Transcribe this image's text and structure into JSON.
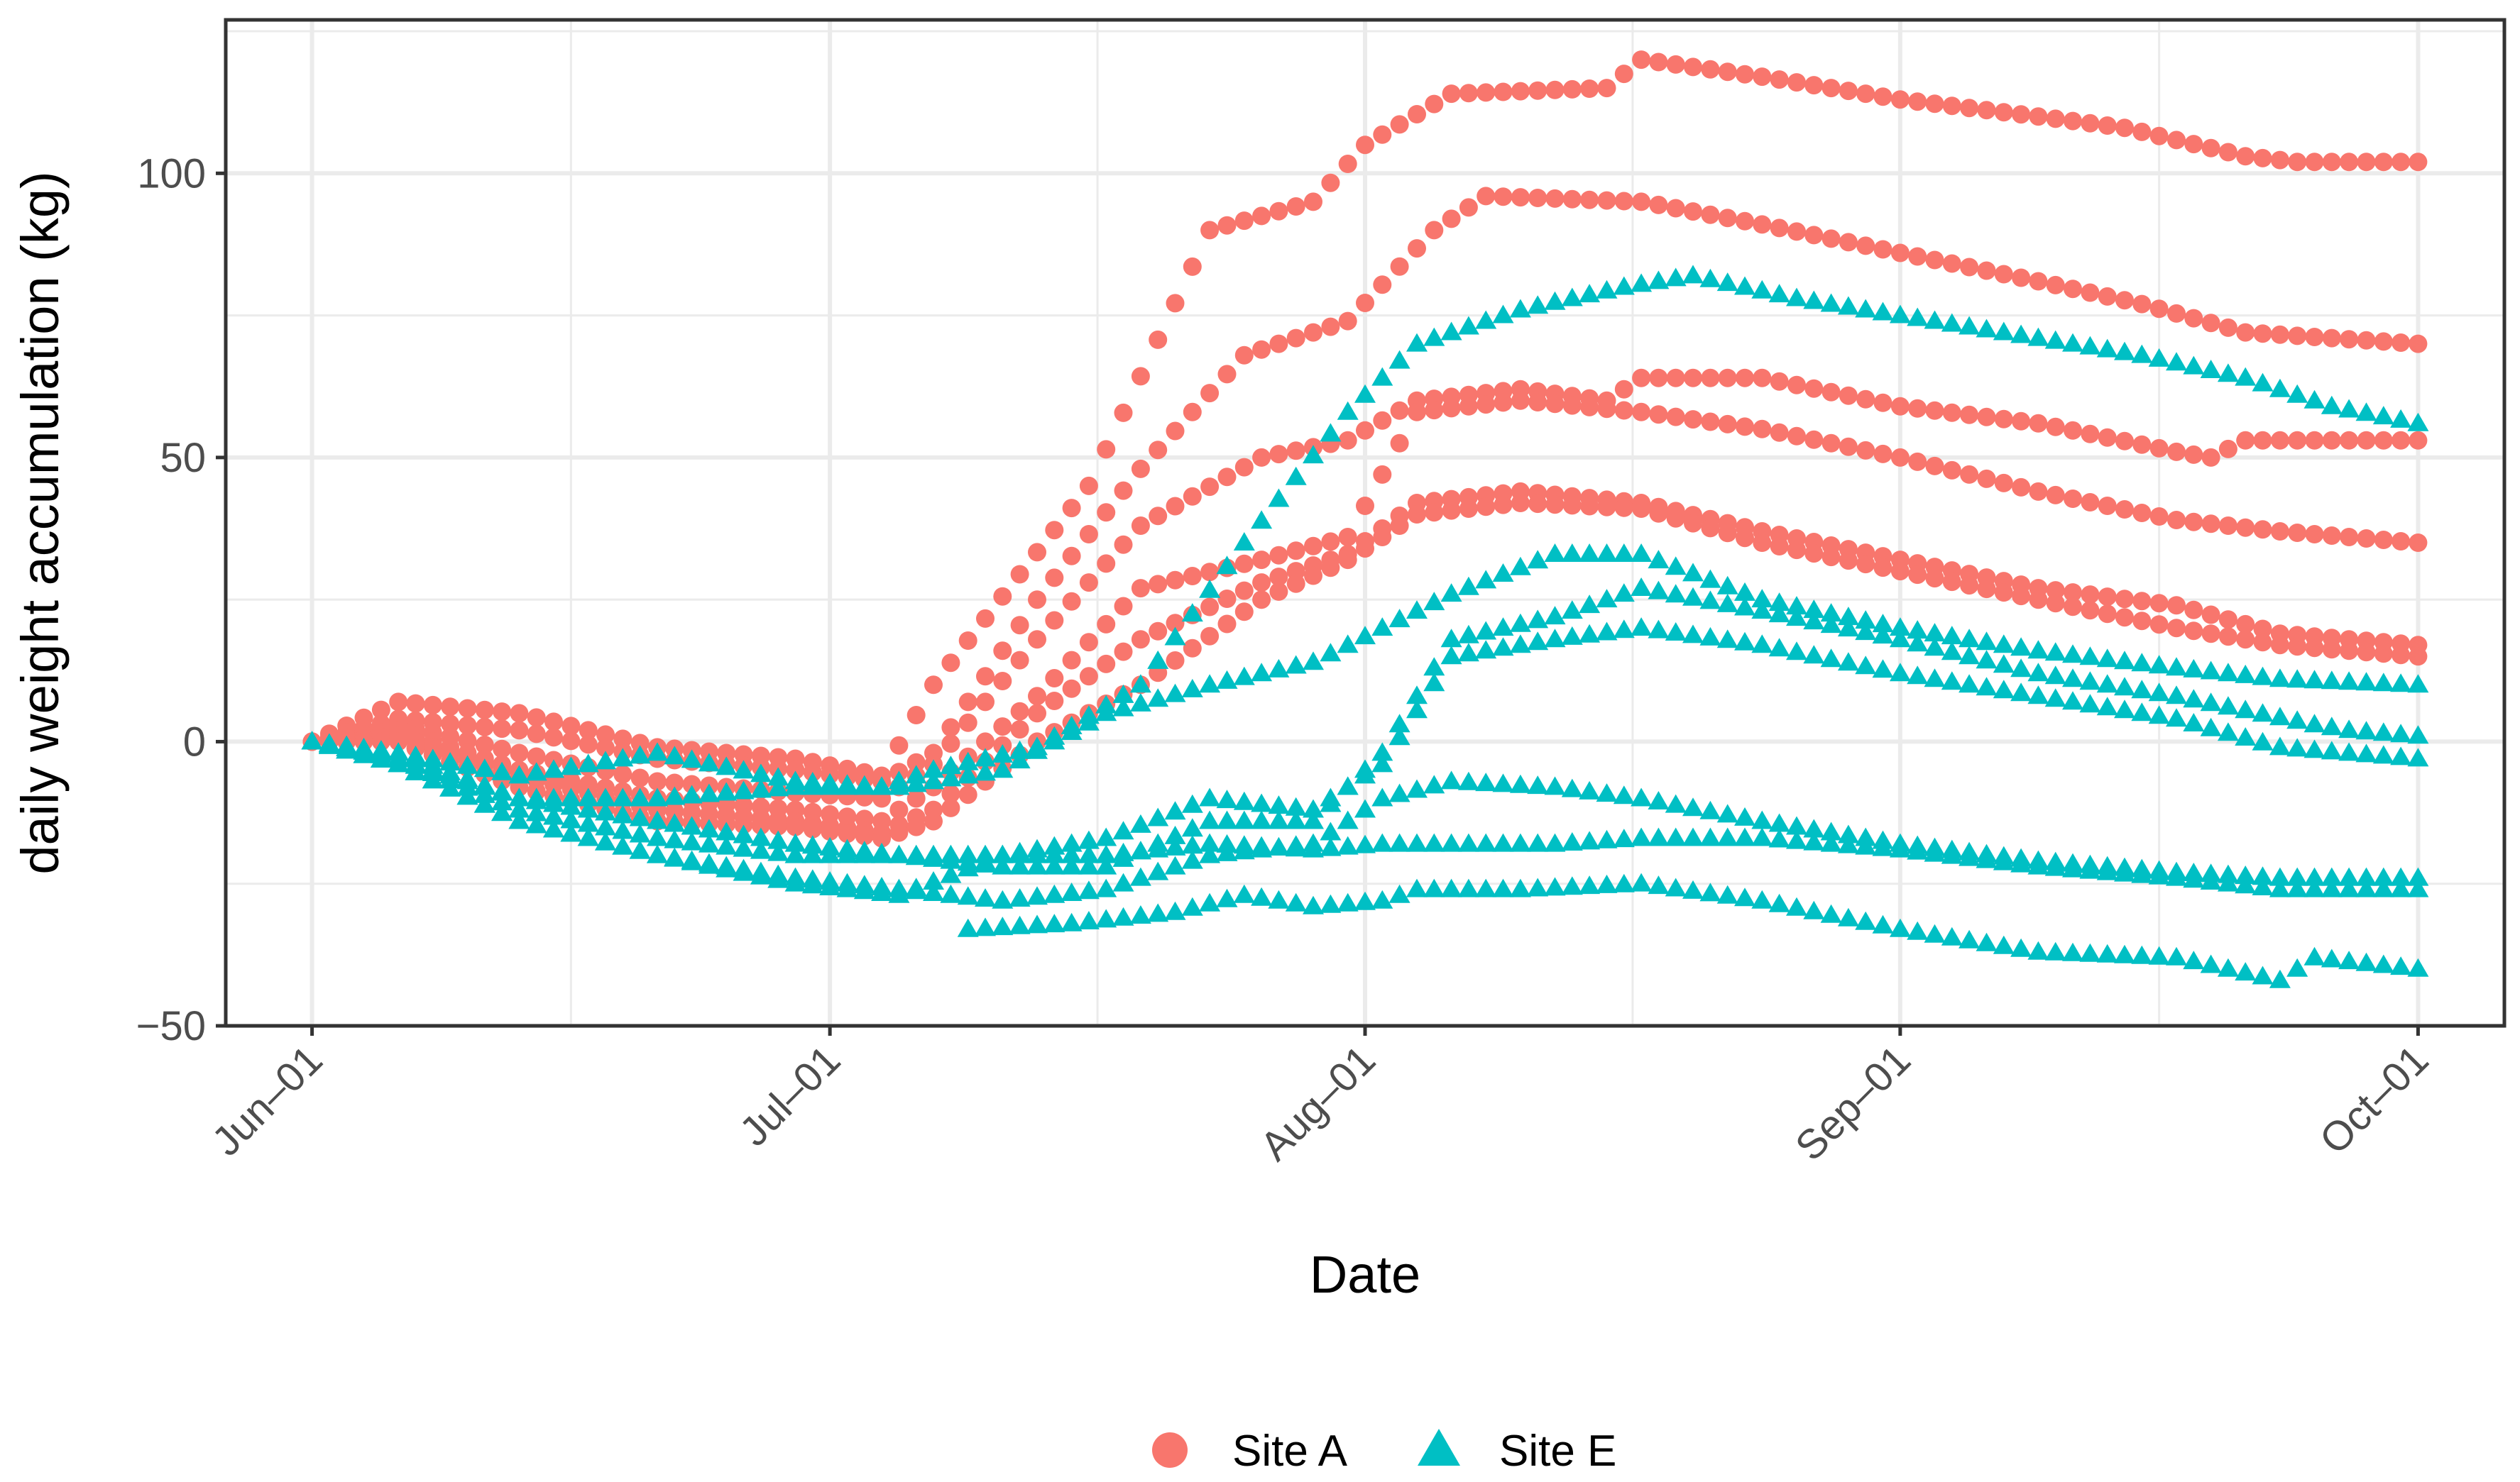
{
  "chart_data": {
    "type": "scatter",
    "title": "",
    "xlabel": "Date",
    "ylabel": "daily weight accumulation (kg)",
    "x_axis": {
      "unit": "days since Jun-01",
      "range": [
        -5,
        127
      ],
      "ticks": [
        {
          "value": 0,
          "label": "Jun–01"
        },
        {
          "value": 30,
          "label": "Jul–01"
        },
        {
          "value": 61,
          "label": "Aug–01"
        },
        {
          "value": 92,
          "label": "Sep–01"
        },
        {
          "value": 122,
          "label": "Oct–01"
        }
      ]
    },
    "y_axis": {
      "range": [
        -50,
        127
      ],
      "ticks": [
        {
          "value": -50,
          "label": "−50"
        },
        {
          "value": 0,
          "label": "0"
        },
        {
          "value": 50,
          "label": "50"
        },
        {
          "value": 100,
          "label": "100"
        }
      ]
    },
    "grid": true,
    "legend": {
      "position": "bottom",
      "entries": [
        {
          "name": "Site A",
          "shape": "circle",
          "color": "#F8766D"
        },
        {
          "name": "Site E",
          "shape": "triangle",
          "color": "#00BFC4"
        }
      ]
    },
    "series": [
      {
        "name": "Site A",
        "shape": "circle",
        "color": "#F8766D",
        "points": [
          [
            0,
            0
          ],
          [
            5,
            7
          ],
          [
            12,
            5
          ],
          [
            20,
            -1
          ],
          [
            28,
            -3
          ],
          [
            33,
            -6
          ],
          [
            36,
            10
          ],
          [
            45,
            45
          ],
          [
            52,
            90
          ],
          [
            58,
            95
          ],
          [
            61,
            105
          ],
          [
            66,
            114
          ],
          [
            75,
            115
          ],
          [
            77,
            120
          ],
          [
            84,
            117
          ],
          [
            92,
            113
          ],
          [
            100,
            110
          ],
          [
            105,
            108
          ],
          [
            112,
            103
          ],
          [
            115,
            102
          ],
          [
            122,
            102
          ]
        ]
      },
      {
        "name": "Site A",
        "shape": "circle",
        "color": "#F8766D",
        "points": [
          [
            0,
            0
          ],
          [
            5,
            4
          ],
          [
            12,
            2
          ],
          [
            20,
            -3
          ],
          [
            28,
            -5
          ],
          [
            33,
            -7
          ],
          [
            36,
            -2
          ],
          [
            42,
            25
          ],
          [
            48,
            48
          ],
          [
            54,
            68
          ],
          [
            60,
            74
          ],
          [
            65,
            90
          ],
          [
            68,
            96
          ],
          [
            77,
            95
          ],
          [
            84,
            91
          ],
          [
            92,
            86
          ],
          [
            100,
            81
          ],
          [
            106,
            77
          ],
          [
            112,
            72
          ],
          [
            117,
            71
          ],
          [
            122,
            70
          ]
        ]
      },
      {
        "name": "Site A",
        "shape": "circle",
        "color": "#F8766D",
        "points": [
          [
            0,
            0
          ],
          [
            5,
            3
          ],
          [
            12,
            -2
          ],
          [
            20,
            -7
          ],
          [
            28,
            -9
          ],
          [
            33,
            -10
          ],
          [
            36,
            -4
          ],
          [
            42,
            18
          ],
          [
            48,
            38
          ],
          [
            55,
            50
          ],
          [
            60,
            53
          ],
          [
            64,
            60
          ],
          [
            70,
            62
          ],
          [
            75,
            60
          ],
          [
            77,
            64
          ],
          [
            84,
            64
          ],
          [
            92,
            59
          ],
          [
            100,
            56
          ],
          [
            108,
            51
          ],
          [
            110,
            50
          ],
          [
            112,
            53
          ],
          [
            122,
            53
          ]
        ]
      },
      {
        "name": "Site A",
        "shape": "circle",
        "color": "#F8766D",
        "points": [
          [
            0,
            0
          ],
          [
            5,
            2
          ],
          [
            12,
            -5
          ],
          [
            20,
            -10
          ],
          [
            28,
            -12
          ],
          [
            33,
            -14
          ],
          [
            36,
            -8
          ],
          [
            42,
            8
          ],
          [
            48,
            27
          ],
          [
            55,
            32
          ],
          [
            60,
            36
          ],
          [
            64,
            58
          ],
          [
            70,
            60
          ],
          [
            77,
            58
          ],
          [
            84,
            55
          ],
          [
            92,
            50
          ],
          [
            100,
            44
          ],
          [
            108,
            39
          ],
          [
            114,
            37
          ],
          [
            122,
            35
          ]
        ]
      },
      {
        "name": "Site A",
        "shape": "circle",
        "color": "#F8766D",
        "points": [
          [
            0,
            0
          ],
          [
            5,
            1
          ],
          [
            12,
            -6
          ],
          [
            20,
            -12
          ],
          [
            28,
            -14
          ],
          [
            33,
            -16
          ],
          [
            36,
            -12
          ],
          [
            42,
            5
          ],
          [
            48,
            18
          ],
          [
            55,
            28
          ],
          [
            60,
            33
          ],
          [
            64,
            42
          ],
          [
            70,
            44
          ],
          [
            77,
            42
          ],
          [
            84,
            37
          ],
          [
            92,
            32
          ],
          [
            100,
            27
          ],
          [
            108,
            24
          ],
          [
            114,
            19
          ],
          [
            122,
            17
          ]
        ]
      },
      {
        "name": "Site A",
        "shape": "circle",
        "color": "#F8766D",
        "points": [
          [
            0,
            0
          ],
          [
            5,
            0
          ],
          [
            12,
            -8
          ],
          [
            20,
            -14
          ],
          [
            28,
            -15
          ],
          [
            33,
            -17
          ],
          [
            36,
            -14
          ],
          [
            42,
            0
          ],
          [
            48,
            10
          ],
          [
            55,
            25
          ],
          [
            60,
            32
          ],
          [
            64,
            40
          ],
          [
            70,
            42
          ],
          [
            77,
            41
          ],
          [
            84,
            35
          ],
          [
            92,
            30
          ],
          [
            100,
            25
          ],
          [
            108,
            20
          ],
          [
            114,
            17
          ],
          [
            122,
            15
          ]
        ]
      },
      {
        "name": "Site E",
        "shape": "triangle",
        "color": "#00BFC4",
        "points": [
          [
            0,
            0
          ],
          [
            5,
            -2
          ],
          [
            12,
            -6
          ],
          [
            20,
            -2
          ],
          [
            28,
            -7
          ],
          [
            33,
            -8
          ],
          [
            36,
            -5
          ],
          [
            42,
            -1
          ],
          [
            48,
            10
          ],
          [
            54,
            35
          ],
          [
            60,
            58
          ],
          [
            64,
            70
          ],
          [
            70,
            76
          ],
          [
            76,
            80
          ],
          [
            80,
            82
          ],
          [
            86,
            78
          ],
          [
            92,
            75
          ],
          [
            100,
            71
          ],
          [
            106,
            68
          ],
          [
            112,
            64
          ],
          [
            117,
            59
          ],
          [
            122,
            56
          ]
        ]
      },
      {
        "name": "Site E",
        "shape": "triangle",
        "color": "#00BFC4",
        "points": [
          [
            0,
            0
          ],
          [
            5,
            -2
          ],
          [
            12,
            -10
          ],
          [
            20,
            -10
          ],
          [
            28,
            -8
          ],
          [
            34,
            -8
          ],
          [
            40,
            -5
          ],
          [
            46,
            5
          ],
          [
            52,
            10
          ],
          [
            58,
            14
          ],
          [
            62,
            20
          ],
          [
            66,
            26
          ],
          [
            72,
            33
          ],
          [
            77,
            33
          ],
          [
            84,
            25
          ],
          [
            92,
            20
          ],
          [
            100,
            16
          ],
          [
            108,
            13
          ],
          [
            114,
            11
          ],
          [
            122,
            10
          ]
        ]
      },
      {
        "name": "Site E",
        "shape": "triangle",
        "color": "#00BFC4",
        "points": [
          [
            0,
            0
          ],
          [
            5,
            -3
          ],
          [
            12,
            -10
          ],
          [
            20,
            -14
          ],
          [
            28,
            -18
          ],
          [
            34,
            -20
          ],
          [
            40,
            -22
          ],
          [
            46,
            -22
          ],
          [
            52,
            -14
          ],
          [
            58,
            -14
          ],
          [
            62,
            -2
          ],
          [
            66,
            18
          ],
          [
            72,
            22
          ],
          [
            77,
            27
          ],
          [
            84,
            23
          ],
          [
            92,
            18
          ],
          [
            100,
            12
          ],
          [
            108,
            8
          ],
          [
            116,
            3
          ],
          [
            118,
            2
          ],
          [
            122,
            1
          ]
        ]
      },
      {
        "name": "Site E",
        "shape": "triangle",
        "color": "#00BFC4",
        "points": [
          [
            0,
            0
          ],
          [
            5,
            -3
          ],
          [
            12,
            -12
          ],
          [
            20,
            -17
          ],
          [
            28,
            -20
          ],
          [
            34,
            -20
          ],
          [
            40,
            -20
          ],
          [
            46,
            -17
          ],
          [
            52,
            -10
          ],
          [
            58,
            -12
          ],
          [
            62,
            -4
          ],
          [
            66,
            15
          ],
          [
            72,
            18
          ],
          [
            77,
            20
          ],
          [
            84,
            17
          ],
          [
            92,
            12
          ],
          [
            100,
            8
          ],
          [
            108,
            4
          ],
          [
            114,
            -1
          ],
          [
            122,
            -3
          ]
        ]
      },
      {
        "name": "Site E",
        "shape": "triangle",
        "color": "#00BFC4",
        "points": [
          [
            0,
            0
          ],
          [
            5,
            -4
          ],
          [
            12,
            -14
          ],
          [
            20,
            -20
          ],
          [
            28,
            -24
          ],
          [
            34,
            -26
          ],
          [
            40,
            -28
          ],
          [
            46,
            -26
          ],
          [
            52,
            -20
          ],
          [
            58,
            -18
          ],
          [
            62,
            -10
          ],
          [
            66,
            -7
          ],
          [
            72,
            -8
          ],
          [
            77,
            -10
          ],
          [
            84,
            -14
          ],
          [
            92,
            -18
          ],
          [
            100,
            -21
          ],
          [
            108,
            -23
          ],
          [
            114,
            -24
          ],
          [
            122,
            -24
          ]
        ]
      },
      {
        "name": "Site E",
        "shape": "triangle",
        "color": "#00BFC4",
        "points": [
          [
            0,
            0
          ],
          [
            5,
            -4
          ],
          [
            12,
            -14
          ],
          [
            20,
            -20
          ],
          [
            28,
            -25
          ],
          [
            34,
            -27
          ],
          [
            40,
            -20
          ],
          [
            46,
            -20
          ],
          [
            52,
            -18
          ],
          [
            58,
            -19
          ],
          [
            62,
            -18
          ],
          [
            66,
            -18
          ],
          [
            72,
            -18
          ],
          [
            77,
            -17
          ],
          [
            84,
            -17
          ],
          [
            92,
            -19
          ],
          [
            100,
            -22
          ],
          [
            108,
            -24
          ],
          [
            114,
            -26
          ],
          [
            122,
            -26
          ]
        ]
      },
      {
        "name": "Site E",
        "shape": "triangle",
        "color": "#00BFC4",
        "points": [
          [
            38,
            -33
          ],
          [
            44,
            -32
          ],
          [
            50,
            -30
          ],
          [
            54,
            -27
          ],
          [
            58,
            -29
          ],
          [
            62,
            -28
          ],
          [
            64,
            -26
          ],
          [
            70,
            -26
          ],
          [
            77,
            -25
          ],
          [
            84,
            -28
          ],
          [
            92,
            -33
          ],
          [
            100,
            -37
          ],
          [
            108,
            -38
          ],
          [
            114,
            -42
          ],
          [
            116,
            -38
          ],
          [
            122,
            -40
          ]
        ]
      }
    ]
  }
}
